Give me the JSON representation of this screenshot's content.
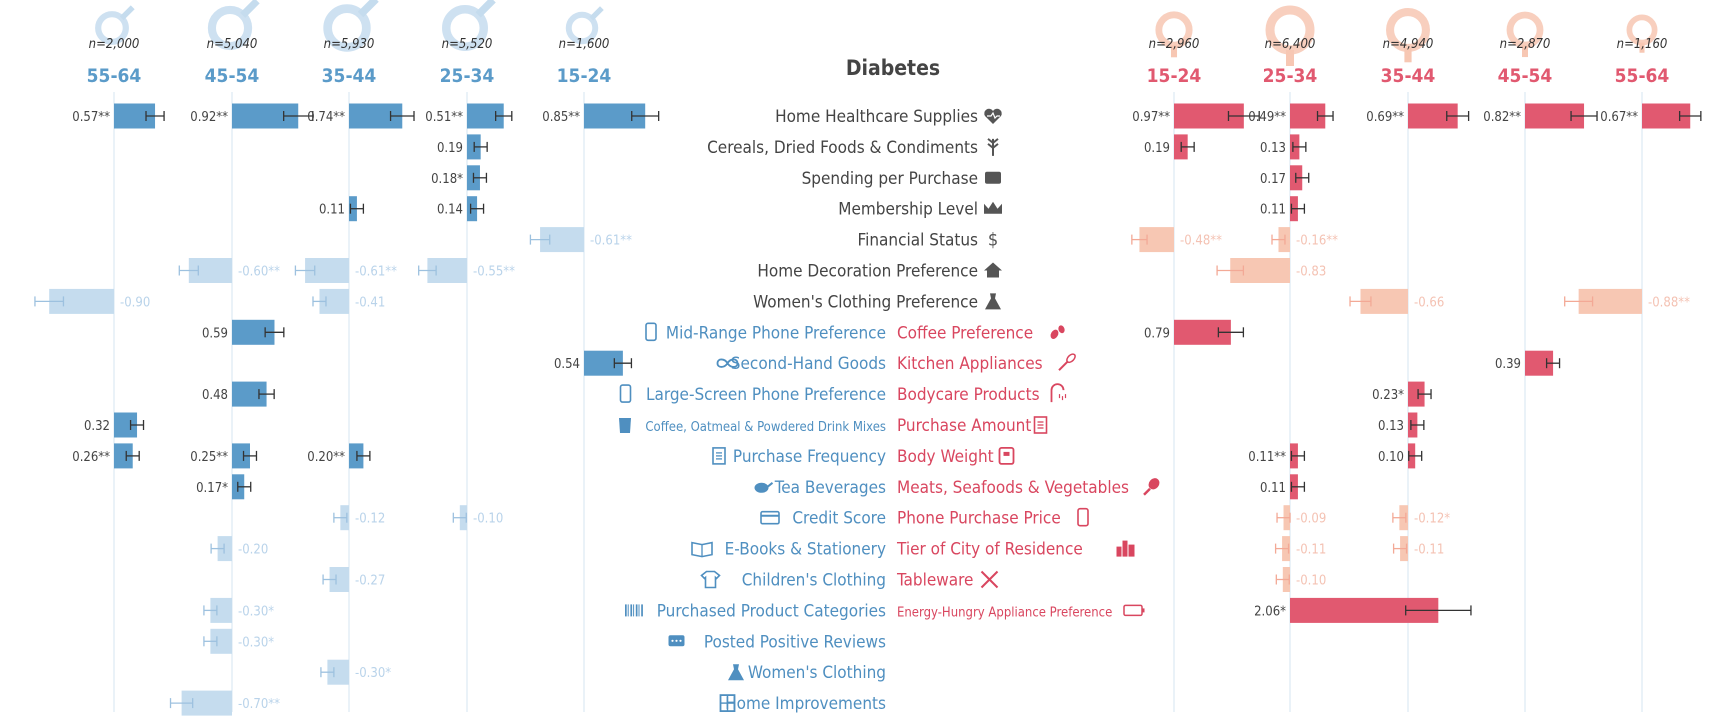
{
  "chart_data": {
    "type": "bar",
    "title": "Diabetes",
    "colors": {
      "male": "#5b9bc9",
      "female": "#e15970",
      "male_neg": "#c5dcee",
      "female_neg": "#f7c7b3",
      "grid": "#e3edf6",
      "text": "#444444"
    },
    "male_groups": [
      {
        "age": "55-64",
        "n": "n=2,000"
      },
      {
        "age": "45-54",
        "n": "n=5,040"
      },
      {
        "age": "35-44",
        "n": "n=5,930"
      },
      {
        "age": "25-34",
        "n": "n=5,520"
      },
      {
        "age": "15-24",
        "n": "n=1,600"
      }
    ],
    "female_groups": [
      {
        "age": "15-24",
        "n": "n=2,960"
      },
      {
        "age": "25-34",
        "n": "n=6,400"
      },
      {
        "age": "35-44",
        "n": "n=4,940"
      },
      {
        "age": "45-54",
        "n": "n=2,870"
      },
      {
        "age": "55-64",
        "n": "n=1,160"
      }
    ],
    "center_rows": [
      {
        "row": 0,
        "label": "Home Healthcare Supplies",
        "icon": "heart-pulse-icon"
      },
      {
        "row": 1,
        "label": "Cereals, Dried Foods & Condiments",
        "icon": "wheat-icon"
      },
      {
        "row": 2,
        "label": "Spending per Purchase",
        "icon": "wallet-icon"
      },
      {
        "row": 3,
        "label": "Membership Level",
        "icon": "crown-icon"
      },
      {
        "row": 4,
        "label": "Financial Status",
        "icon": "dollar-icon"
      },
      {
        "row": 5,
        "label": "Home Decoration Preference",
        "icon": "house-icon"
      },
      {
        "row": 6,
        "label": "Women's Clothing Preference",
        "icon": "dress-icon"
      }
    ],
    "male_rows": [
      {
        "row": 7,
        "label": "Mid-Range Phone Preference",
        "icon": "phone-icon"
      },
      {
        "row": 8,
        "label": "Second-Hand Goods",
        "icon": "infinity-icon"
      },
      {
        "row": 9,
        "label": "Large-Screen Phone Preference",
        "icon": "phone-icon"
      },
      {
        "row": 10,
        "label": "Coffee, Oatmeal & Powdered Drink Mixes",
        "icon": "cup-icon"
      },
      {
        "row": 11,
        "label": "Purchase Frequency",
        "icon": "receipt-icon"
      },
      {
        "row": 12,
        "label": "Tea Beverages",
        "icon": "teapot-icon"
      },
      {
        "row": 13,
        "label": "Credit Score",
        "icon": "card-icon"
      },
      {
        "row": 14,
        "label": "E-Books & Stationery",
        "icon": "book-icon"
      },
      {
        "row": 15,
        "label": "Children's Clothing",
        "icon": "onesie-icon"
      },
      {
        "row": 16,
        "label": "Purchased Product Categories",
        "icon": "barcode-icon"
      },
      {
        "row": 17,
        "label": "Posted Positive Reviews",
        "icon": "chat-icon"
      },
      {
        "row": 18,
        "label": "Women's Clothing",
        "icon": "dress-icon"
      },
      {
        "row": 19,
        "label": "Home Improvements",
        "icon": "window-icon"
      }
    ],
    "female_rows": [
      {
        "row": 7,
        "label": "Coffee Preference",
        "icon": "coffee-beans-icon"
      },
      {
        "row": 8,
        "label": "Kitchen Appliances",
        "icon": "whisk-icon"
      },
      {
        "row": 9,
        "label": "Bodycare Products",
        "icon": "shower-icon"
      },
      {
        "row": 10,
        "label": "Purchase Amount",
        "icon": "receipt-icon"
      },
      {
        "row": 11,
        "label": "Body Weight",
        "icon": "scale-icon"
      },
      {
        "row": 12,
        "label": "Meats, Seafoods & Vegetables",
        "icon": "drumstick-icon"
      },
      {
        "row": 13,
        "label": "Phone Purchase Price",
        "icon": "phone-icon"
      },
      {
        "row": 14,
        "label": "Tier of City of Residence",
        "icon": "city-icon"
      },
      {
        "row": 15,
        "label": "Tableware",
        "icon": "utensils-icon"
      },
      {
        "row": 16,
        "label": "Energy-Hungry Appliance Preference",
        "icon": "battery-icon"
      }
    ],
    "bars": [
      {
        "sex": "male",
        "group": 0,
        "row": 0,
        "value": 0.57,
        "label": "0.57**"
      },
      {
        "sex": "male",
        "group": 0,
        "row": 6,
        "value": -0.9,
        "label": "-0.90"
      },
      {
        "sex": "male",
        "group": 0,
        "row": 10,
        "value": 0.32,
        "label": "0.32"
      },
      {
        "sex": "male",
        "group": 0,
        "row": 11,
        "value": 0.26,
        "label": "0.26**"
      },
      {
        "sex": "male",
        "group": 1,
        "row": 0,
        "value": 0.92,
        "label": "0.92**"
      },
      {
        "sex": "male",
        "group": 1,
        "row": 5,
        "value": -0.6,
        "label": "-0.60**"
      },
      {
        "sex": "male",
        "group": 1,
        "row": 7,
        "value": 0.59,
        "label": "0.59"
      },
      {
        "sex": "male",
        "group": 1,
        "row": 9,
        "value": 0.48,
        "label": "0.48"
      },
      {
        "sex": "male",
        "group": 1,
        "row": 11,
        "value": 0.25,
        "label": "0.25**"
      },
      {
        "sex": "male",
        "group": 1,
        "row": 12,
        "value": 0.17,
        "label": "0.17*"
      },
      {
        "sex": "male",
        "group": 1,
        "row": 14,
        "value": -0.2,
        "label": "-0.20"
      },
      {
        "sex": "male",
        "group": 1,
        "row": 16,
        "value": -0.3,
        "label": "-0.30*"
      },
      {
        "sex": "male",
        "group": 1,
        "row": 17,
        "value": -0.3,
        "label": "-0.30*"
      },
      {
        "sex": "male",
        "group": 1,
        "row": 19,
        "value": -0.7,
        "label": "-0.70**"
      },
      {
        "sex": "male",
        "group": 2,
        "row": 0,
        "value": 0.74,
        "label": "0.74**"
      },
      {
        "sex": "male",
        "group": 2,
        "row": 3,
        "value": 0.11,
        "label": "0.11"
      },
      {
        "sex": "male",
        "group": 2,
        "row": 5,
        "value": -0.61,
        "label": "-0.61**"
      },
      {
        "sex": "male",
        "group": 2,
        "row": 6,
        "value": -0.41,
        "label": "-0.41"
      },
      {
        "sex": "male",
        "group": 2,
        "row": 11,
        "value": 0.2,
        "label": "0.20**"
      },
      {
        "sex": "male",
        "group": 2,
        "row": 13,
        "value": -0.12,
        "label": "-0.12"
      },
      {
        "sex": "male",
        "group": 2,
        "row": 15,
        "value": -0.27,
        "label": "-0.27"
      },
      {
        "sex": "male",
        "group": 2,
        "row": 18,
        "value": -0.3,
        "label": "-0.30*"
      },
      {
        "sex": "male",
        "group": 3,
        "row": 0,
        "value": 0.51,
        "label": "0.51**"
      },
      {
        "sex": "male",
        "group": 3,
        "row": 1,
        "value": 0.19,
        "label": "0.19"
      },
      {
        "sex": "male",
        "group": 3,
        "row": 2,
        "value": 0.18,
        "label": "0.18*"
      },
      {
        "sex": "male",
        "group": 3,
        "row": 3,
        "value": 0.14,
        "label": "0.14"
      },
      {
        "sex": "male",
        "group": 3,
        "row": 5,
        "value": -0.55,
        "label": "-0.55**"
      },
      {
        "sex": "male",
        "group": 3,
        "row": 13,
        "value": -0.1,
        "label": "-0.10"
      },
      {
        "sex": "male",
        "group": 4,
        "row": 0,
        "value": 0.85,
        "label": "0.85**"
      },
      {
        "sex": "male",
        "group": 4,
        "row": 4,
        "value": -0.61,
        "label": "-0.61**"
      },
      {
        "sex": "male",
        "group": 4,
        "row": 8,
        "value": 0.54,
        "label": "0.54"
      },
      {
        "sex": "female",
        "group": 0,
        "row": 0,
        "value": 0.97,
        "label": "0.97**"
      },
      {
        "sex": "female",
        "group": 0,
        "row": 1,
        "value": 0.19,
        "label": "0.19"
      },
      {
        "sex": "female",
        "group": 0,
        "row": 4,
        "value": -0.48,
        "label": "-0.48**"
      },
      {
        "sex": "female",
        "group": 0,
        "row": 7,
        "value": 0.79,
        "label": "0.79"
      },
      {
        "sex": "female",
        "group": 1,
        "row": 0,
        "value": 0.49,
        "label": "0.49**"
      },
      {
        "sex": "female",
        "group": 1,
        "row": 1,
        "value": 0.13,
        "label": "0.13"
      },
      {
        "sex": "female",
        "group": 1,
        "row": 2,
        "value": 0.17,
        "label": "0.17"
      },
      {
        "sex": "female",
        "group": 1,
        "row": 3,
        "value": 0.11,
        "label": "0.11"
      },
      {
        "sex": "female",
        "group": 1,
        "row": 4,
        "value": -0.16,
        "label": "-0.16**"
      },
      {
        "sex": "female",
        "group": 1,
        "row": 5,
        "value": -0.83,
        "label": "-0.83"
      },
      {
        "sex": "female",
        "group": 1,
        "row": 11,
        "value": 0.11,
        "label": "0.11**"
      },
      {
        "sex": "female",
        "group": 1,
        "row": 12,
        "value": 0.11,
        "label": "0.11"
      },
      {
        "sex": "female",
        "group": 1,
        "row": 13,
        "value": -0.09,
        "label": "-0.09"
      },
      {
        "sex": "female",
        "group": 1,
        "row": 14,
        "value": -0.11,
        "label": "-0.11"
      },
      {
        "sex": "female",
        "group": 1,
        "row": 15,
        "value": -0.1,
        "label": "-0.10"
      },
      {
        "sex": "female",
        "group": 1,
        "row": 16,
        "value": 2.06,
        "label": "2.06*"
      },
      {
        "sex": "female",
        "group": 2,
        "row": 0,
        "value": 0.69,
        "label": "0.69**"
      },
      {
        "sex": "female",
        "group": 2,
        "row": 6,
        "value": -0.66,
        "label": "-0.66"
      },
      {
        "sex": "female",
        "group": 2,
        "row": 9,
        "value": 0.23,
        "label": "0.23*"
      },
      {
        "sex": "female",
        "group": 2,
        "row": 10,
        "value": 0.13,
        "label": "0.13"
      },
      {
        "sex": "female",
        "group": 2,
        "row": 11,
        "value": 0.1,
        "label": "0.10"
      },
      {
        "sex": "female",
        "group": 2,
        "row": 13,
        "value": -0.12,
        "label": "-0.12*"
      },
      {
        "sex": "female",
        "group": 2,
        "row": 14,
        "value": -0.11,
        "label": "-0.11"
      },
      {
        "sex": "female",
        "group": 3,
        "row": 0,
        "value": 0.82,
        "label": "0.82**"
      },
      {
        "sex": "female",
        "group": 3,
        "row": 8,
        "value": 0.39,
        "label": "0.39"
      },
      {
        "sex": "female",
        "group": 4,
        "row": 0,
        "value": 0.67,
        "label": "0.67**"
      },
      {
        "sex": "female",
        "group": 4,
        "row": 6,
        "value": -0.88,
        "label": "-0.88**"
      }
    ]
  }
}
